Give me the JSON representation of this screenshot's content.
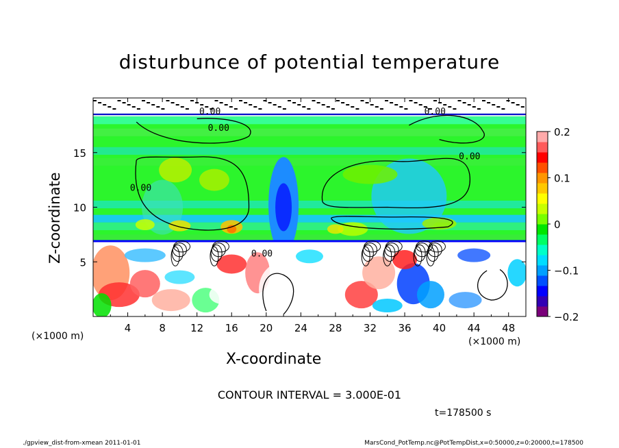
{
  "chart_data": {
    "type": "heatmap",
    "title": "disturbunce of potential temperature",
    "xlabel": "X-coordinate",
    "ylabel": "Z-coordinate",
    "x_unit_label": "(×1000 m)",
    "y_unit_label": "(×1000 m)",
    "xlim": [
      0,
      50
    ],
    "ylim": [
      0,
      20
    ],
    "x_ticks": [
      4,
      8,
      12,
      16,
      20,
      24,
      28,
      32,
      36,
      40,
      44,
      48
    ],
    "y_ticks": [
      5,
      10,
      15
    ],
    "colorbar": {
      "ticks": [
        0.2,
        0.1,
        0,
        -0.1,
        -0.2
      ],
      "tick_labels": [
        "0.2",
        "0.1",
        "0",
        "−0.1",
        "−0.2"
      ],
      "range": [
        -0.2,
        0.2
      ],
      "colors": [
        "#7a007a",
        "#3200b4",
        "#0000ff",
        "#0050ff",
        "#00a0ff",
        "#00ddff",
        "#00ffc8",
        "#00ff64",
        "#00e600",
        "#78ff00",
        "#c8ff00",
        "#ffff00",
        "#ffc800",
        "#ff9600",
        "#ff5000",
        "#ff0000",
        "#ff5a5a",
        "#ffaaaa"
      ]
    },
    "contour_labels": [
      "0.00",
      "0.00",
      "0.00",
      "0.00",
      "0.00",
      "0.00"
    ],
    "contour_interval_text": "CONTOUR INTERVAL = 3.000E-01",
    "time_text": "t=178500 s"
  },
  "footer": {
    "left": "./gpview_dist-from-xmean   2011-01-01",
    "right": "MarsCond_PotTemp.nc@PotTempDist,x=0:50000,z=0:20000,t=178500"
  }
}
